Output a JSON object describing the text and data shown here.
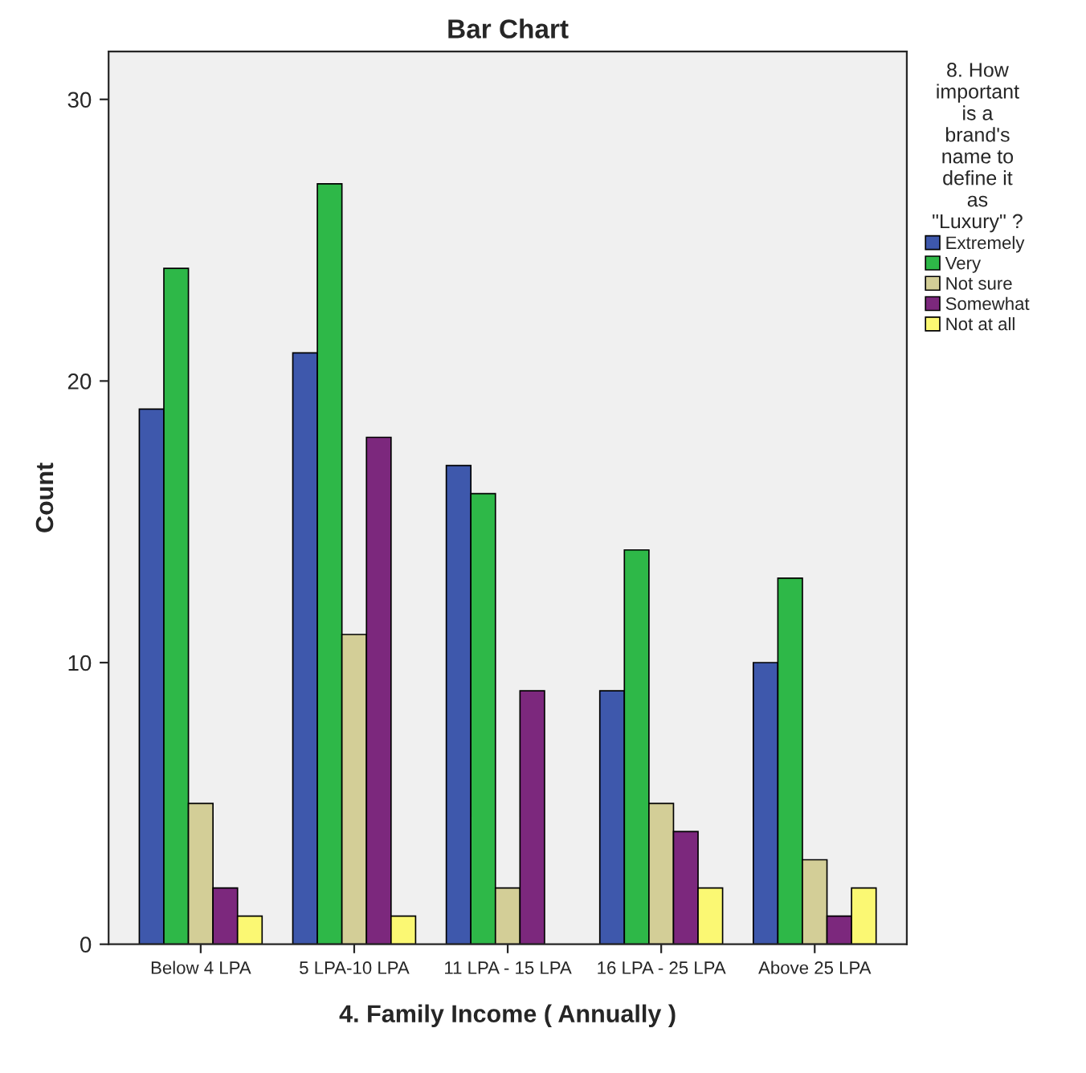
{
  "chart_data": {
    "type": "bar",
    "title": "Bar Chart",
    "xlabel": "4. Family Income ( Annually )",
    "ylabel": "Count",
    "legend_title": "8. How important is a brand's name to define it as \"Luxury\" ?",
    "categories": [
      "Below 4 LPA",
      "5 LPA-10 LPA",
      "11 LPA - 15 LPA",
      "16 LPA - 25 LPA",
      "Above 25 LPA"
    ],
    "series": [
      {
        "name": "Extremely",
        "color": "#3e58ac",
        "values": [
          19,
          21,
          17,
          9,
          10
        ]
      },
      {
        "name": "Very",
        "color": "#2eb848",
        "values": [
          24,
          27,
          16,
          14,
          13
        ]
      },
      {
        "name": "Not sure",
        "color": "#d3ce97",
        "values": [
          5,
          11,
          2,
          5,
          3
        ]
      },
      {
        "name": "Somewhat",
        "color": "#7c287d",
        "values": [
          2,
          18,
          9,
          4,
          1
        ]
      },
      {
        "name": "Not at all",
        "color": "#fbf873",
        "values": [
          1,
          1,
          null,
          2,
          2
        ]
      }
    ],
    "ylim": [
      0,
      31.7
    ],
    "yticks": [
      0,
      10,
      20,
      30
    ],
    "grid": false,
    "legend": "right"
  }
}
